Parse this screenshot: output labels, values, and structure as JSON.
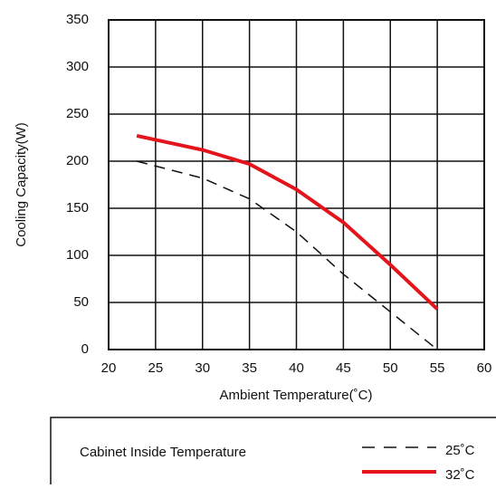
{
  "chart_data": {
    "type": "line",
    "x_label": "Ambient Temperature(˚C)",
    "y_label": "Cooling Capacity(W)",
    "legend_title": "Cabinet Inside Temperature",
    "x": [
      23,
      30,
      35,
      40,
      45,
      50,
      55
    ],
    "series": [
      {
        "name": "25˚C",
        "color": "#111111",
        "dashed": true,
        "values": [
          200,
          182,
          160,
          125,
          80,
          40,
          0
        ]
      },
      {
        "name": "32˚C",
        "color": "#e3141b",
        "dashed": false,
        "values": [
          227,
          212,
          197,
          170,
          135,
          90,
          43
        ]
      }
    ],
    "xlim": [
      20,
      60
    ],
    "xticks": [
      20,
      25,
      30,
      35,
      40,
      45,
      50,
      55,
      60
    ],
    "ylim": [
      0,
      350
    ],
    "yticks": [
      0,
      50,
      100,
      150,
      200,
      250,
      300,
      350
    ],
    "grid": true
  }
}
